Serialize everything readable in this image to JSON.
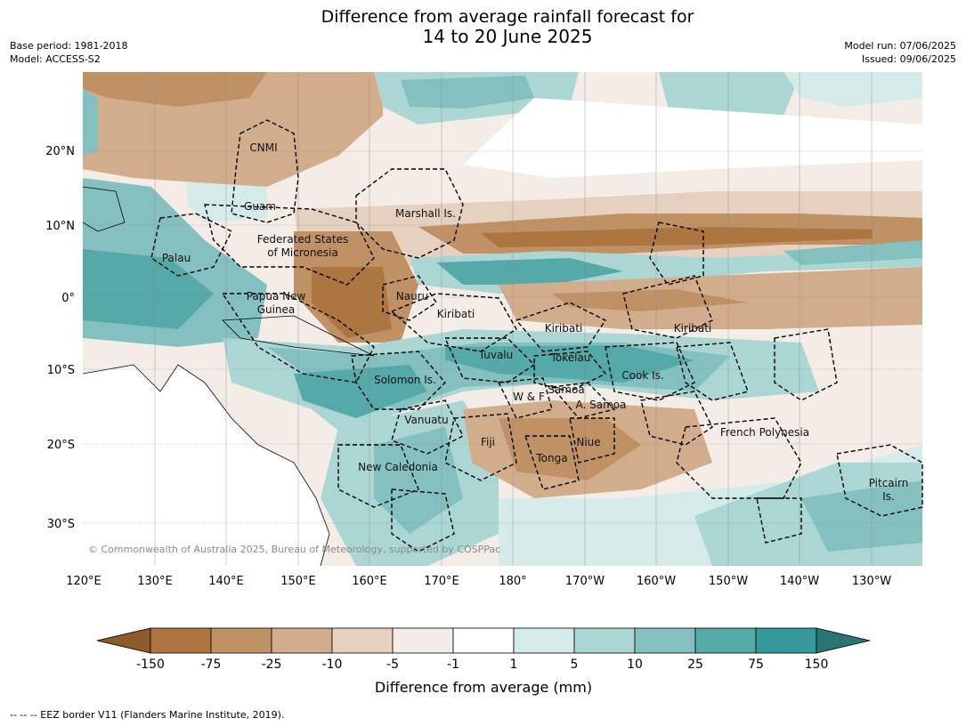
{
  "title": {
    "line1": "Difference from average rainfall forecast for",
    "line2": "14 to 20 June 2025"
  },
  "meta": {
    "base_period": "Base period: 1981-2018",
    "model": "Model: ACCESS-S2",
    "model_run": "Model run: 07/06/2025",
    "issued": "Issued: 09/06/2025"
  },
  "axes": {
    "longitudes": [
      "120°E",
      "130°E",
      "140°E",
      "150°E",
      "160°E",
      "170°E",
      "180°",
      "170°W",
      "160°W",
      "150°W",
      "140°W",
      "130°W"
    ],
    "latitudes": [
      "20°N",
      "10°N",
      "0°",
      "10°S",
      "20°S",
      "30°S"
    ]
  },
  "places": {
    "cnmi": "CNMI",
    "guam": "Guam",
    "marshall": "Marshall Is.",
    "fsm1": "Federated States",
    "fsm2": "of Micronesia",
    "palau": "Palau",
    "png1": "Papua New",
    "png2": "Guinea",
    "nauru": "Nauru",
    "kiribati_w": "Kiribati",
    "kiribati_c": "Kiribati",
    "kiribati_e": "Kiribati",
    "tuvalu": "Tuvalu",
    "tokelau": "Tokelau",
    "cook": "Cook Is.",
    "solomon": "Solomon Is.",
    "wf": "W & F",
    "samoa": "Samoa",
    "asamoa": "A. Samoa",
    "vanuatu": "Vanuatu",
    "fiji": "Fiji",
    "niue": "Niue",
    "tonga": "Tonga",
    "frenchpoly": "French Polynesia",
    "newcal": "New Caledonia",
    "pitcairn1": "Pitcairn",
    "pitcairn2": "Is."
  },
  "copyright": "© Commonwealth of Australia 2025, Bureau of Meteorology, supported by COSPPac",
  "legend": {
    "title": "Difference from average (mm)",
    "ticks": [
      "-150",
      "-75",
      "-25",
      "-10",
      "-5",
      "-1",
      "1",
      "5",
      "10",
      "25",
      "75",
      "150"
    ],
    "colors": [
      "#8c5a2b",
      "#ad7540",
      "#c09165",
      "#d2ad8c",
      "#e6d0bf",
      "#f4ece6",
      "#ffffff",
      "#d4ebe9",
      "#acd6d4",
      "#84c0c0",
      "#55a9a9",
      "#35999a",
      "#2b7474"
    ]
  },
  "footer": "--  --  -- EEZ border V11 (Flanders Marine Institute, 2019)."
}
